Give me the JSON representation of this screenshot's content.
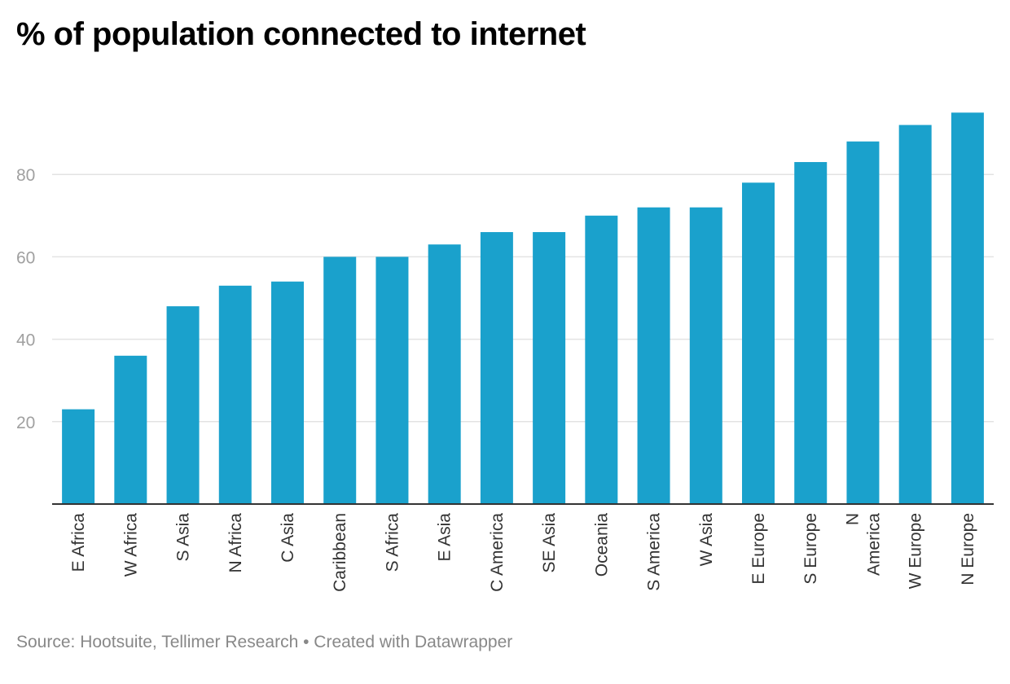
{
  "chart_data": {
    "type": "bar",
    "title": "% of population connected to internet",
    "categories": [
      "E Africa",
      "W Africa",
      "S Asia",
      "N Africa",
      "C Asia",
      "Caribbean",
      "S Africa",
      "E Asia",
      "C America",
      "SE Asia",
      "Oceania",
      "S America",
      "W Asia",
      "E Europe",
      "S Europe",
      "N America",
      "W Europe",
      "N Europe"
    ],
    "values": [
      23,
      36,
      48,
      53,
      54,
      60,
      60,
      63,
      66,
      66,
      70,
      72,
      72,
      78,
      83,
      88,
      92,
      95
    ],
    "xlabel": "",
    "ylabel": "",
    "ylim": [
      0,
      100
    ],
    "yticks": [
      20,
      40,
      60,
      80
    ],
    "grid": true,
    "legend": "none",
    "bar_color": "#1aa1cc",
    "gridline_color": "#e3e3e3",
    "tick_label_color": "#a0a0a0",
    "axis_color": "#333333"
  },
  "footer": {
    "source": "Source: Hootsuite, Tellimer Research • Created with Datawrapper"
  }
}
